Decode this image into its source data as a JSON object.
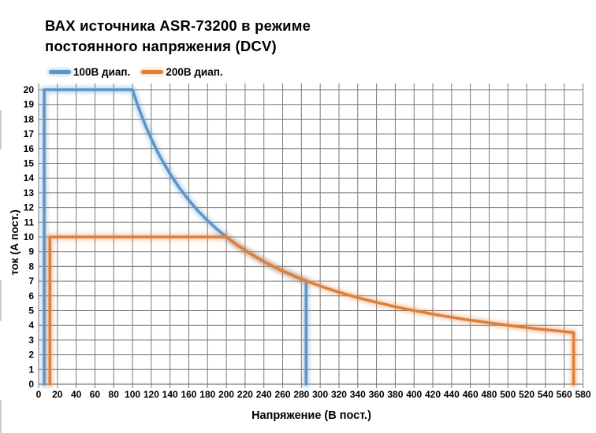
{
  "chart_data": {
    "type": "line",
    "title_lines": [
      "ВАХ источника ASR-73200 в режиме",
      "постоянного напряжения (DCV)"
    ],
    "xlabel": "Напряжение (В пост.)",
    "ylabel": "ток (А пост.)",
    "x_axis": {
      "min": 0,
      "max": 580,
      "step": 20
    },
    "y_axis": {
      "min": 0,
      "max": 20,
      "step": 1
    },
    "grid": true,
    "legend_position": "top-left",
    "colors": {
      "grid": "#7a7a7a",
      "axis": "#7a7a7a",
      "text": "#000000",
      "background": "#ffffff"
    },
    "series": [
      {
        "name": "100В диап.",
        "color": "#5b96cb",
        "glow": "#b8d4ec",
        "points": [
          [
            6,
            0
          ],
          [
            6,
            20
          ],
          [
            100,
            20
          ],
          [
            105,
            19.05
          ],
          [
            110,
            18.18
          ],
          [
            115,
            17.39
          ],
          [
            120,
            16.67
          ],
          [
            125,
            16
          ],
          [
            130,
            15.38
          ],
          [
            140,
            14.29
          ],
          [
            150,
            13.33
          ],
          [
            160,
            12.5
          ],
          [
            170,
            11.76
          ],
          [
            180,
            11.11
          ],
          [
            190,
            10.53
          ],
          [
            200,
            10
          ],
          [
            210,
            9.52
          ],
          [
            220,
            9.09
          ],
          [
            230,
            8.7
          ],
          [
            240,
            8.33
          ],
          [
            250,
            8
          ],
          [
            260,
            7.69
          ],
          [
            270,
            7.41
          ],
          [
            280,
            7.14
          ],
          [
            285,
            7.02
          ],
          [
            285,
            0
          ]
        ]
      },
      {
        "name": "200В диап.",
        "color": "#e07f38",
        "glow": "#f5d3b8",
        "points": [
          [
            12,
            0
          ],
          [
            12,
            10
          ],
          [
            200,
            10
          ],
          [
            210,
            9.52
          ],
          [
            220,
            9.09
          ],
          [
            230,
            8.7
          ],
          [
            240,
            8.33
          ],
          [
            250,
            8
          ],
          [
            260,
            7.69
          ],
          [
            270,
            7.41
          ],
          [
            280,
            7.14
          ],
          [
            290,
            6.9
          ],
          [
            300,
            6.67
          ],
          [
            310,
            6.45
          ],
          [
            320,
            6.25
          ],
          [
            330,
            6.06
          ],
          [
            340,
            5.88
          ],
          [
            350,
            5.71
          ],
          [
            360,
            5.56
          ],
          [
            370,
            5.41
          ],
          [
            380,
            5.26
          ],
          [
            390,
            5.13
          ],
          [
            400,
            5
          ],
          [
            410,
            4.88
          ],
          [
            420,
            4.76
          ],
          [
            430,
            4.65
          ],
          [
            440,
            4.55
          ],
          [
            450,
            4.44
          ],
          [
            460,
            4.35
          ],
          [
            470,
            4.26
          ],
          [
            480,
            4.17
          ],
          [
            490,
            4.08
          ],
          [
            500,
            4
          ],
          [
            510,
            3.92
          ],
          [
            520,
            3.85
          ],
          [
            530,
            3.77
          ],
          [
            540,
            3.7
          ],
          [
            550,
            3.64
          ],
          [
            560,
            3.57
          ],
          [
            570,
            3.51
          ],
          [
            570,
            0
          ]
        ]
      }
    ]
  }
}
